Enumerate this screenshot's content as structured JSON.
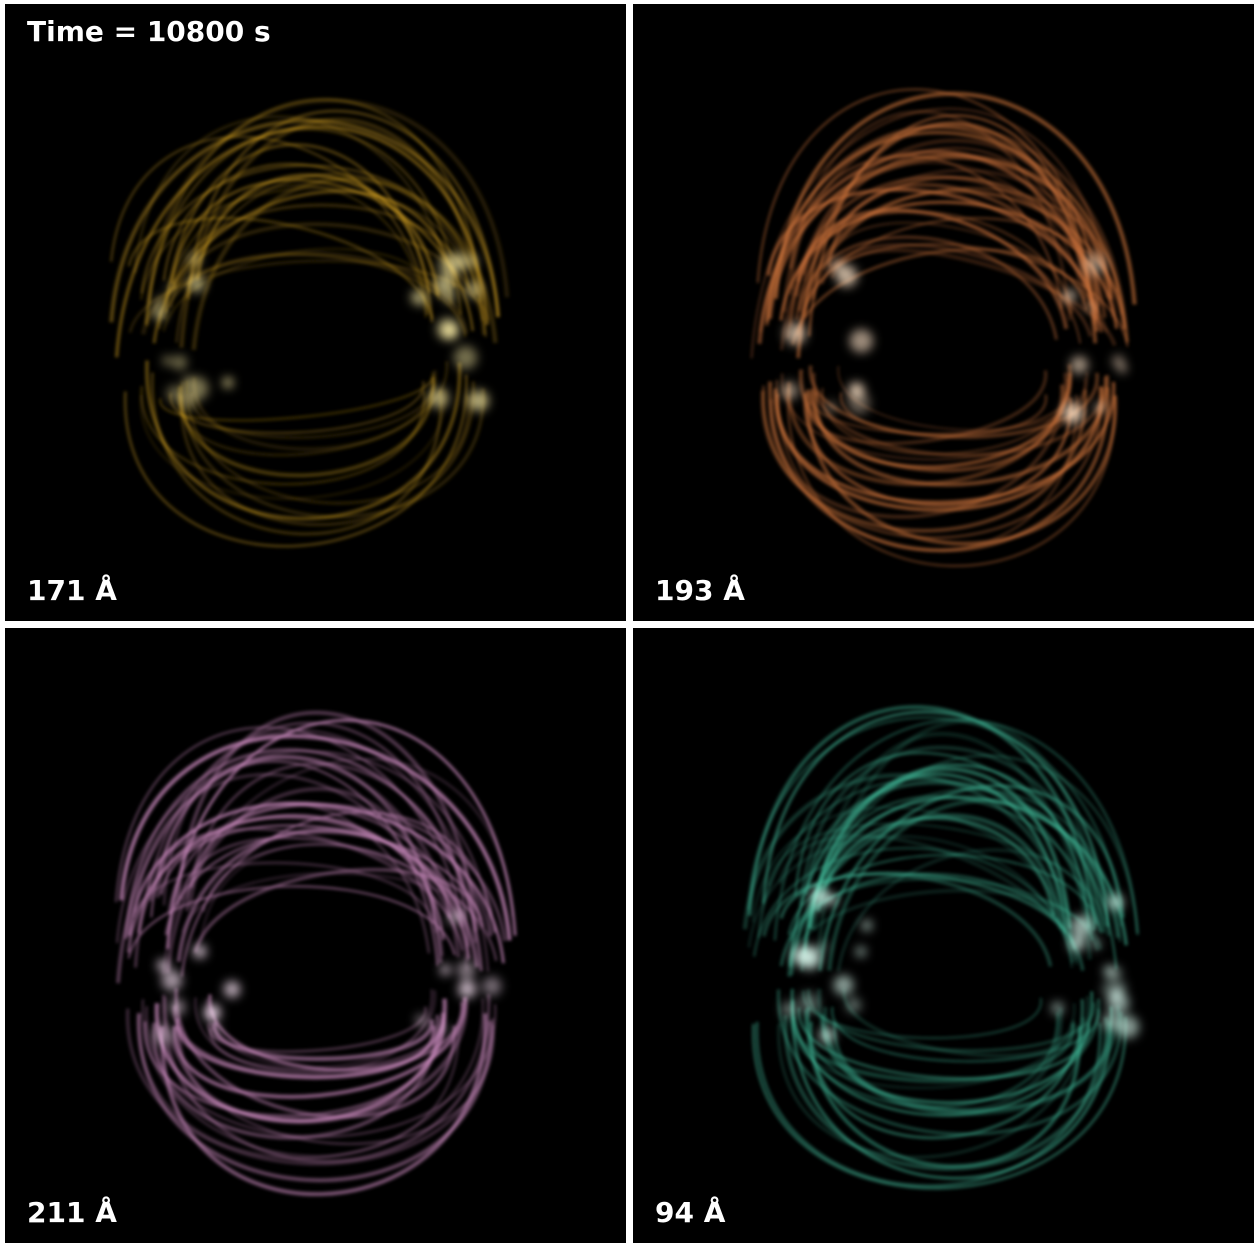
{
  "timestamp": "Time = 10800 s",
  "panels": [
    {
      "id": "p171",
      "label": "171 Å",
      "color": "#f2b826",
      "glow": "#fff1a8",
      "brightness": 0.55,
      "footpoints": "strong"
    },
    {
      "id": "p193",
      "label": "193 Å",
      "color": "#c8703a",
      "glow": "#ffe4c8",
      "brightness": 0.9,
      "footpoints": "medium"
    },
    {
      "id": "p211",
      "label": "211 Å",
      "color": "#c486b8",
      "glow": "#ffe8fa",
      "brightness": 0.95,
      "footpoints": "medium"
    },
    {
      "id": "p94",
      "label": "94 Å",
      "color": "#3fb596",
      "glow": "#dffff4",
      "brightness": 0.75,
      "footpoints": "strong"
    }
  ]
}
